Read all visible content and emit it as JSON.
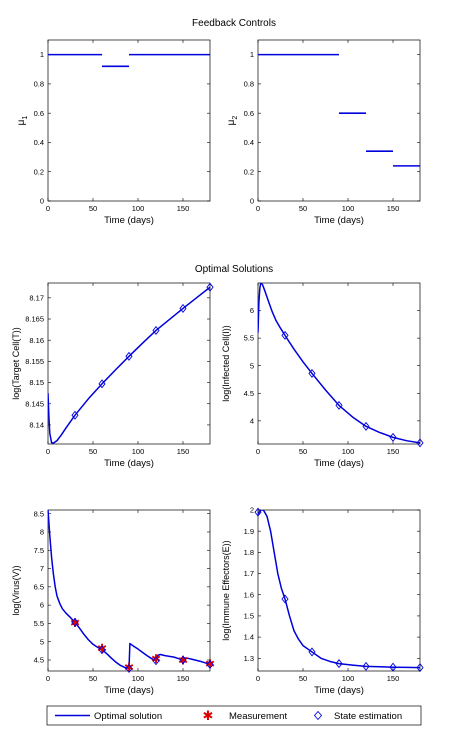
{
  "section_titles": {
    "controls": "Feedback Controls",
    "solutions": "Optimal Solutions"
  },
  "colors": {
    "line": "#0000dd",
    "marker_measure": "#dd0000",
    "axis": "#000000"
  },
  "legend": {
    "optimal": "Optimal solution",
    "measurement": "Measurement",
    "state": "State estimation"
  },
  "chart_data": [
    {
      "id": "mu1",
      "type": "line",
      "ylabel": "μ",
      "ylabel_sub": "1",
      "xlabel": "Time (days)",
      "xlim": [
        0,
        180
      ],
      "ylim": [
        0,
        1.1
      ],
      "xticks": [
        0,
        50,
        100,
        150
      ],
      "yticks": [
        0,
        0.2,
        0.4,
        0.6,
        0.8,
        1
      ],
      "ytick_labels": [
        "0",
        "0.2",
        "0.4",
        "0.6",
        "0.8",
        "1"
      ],
      "segments": [
        {
          "x": [
            0,
            60
          ],
          "y": [
            1,
            1
          ]
        },
        {
          "x": [
            60,
            90
          ],
          "y": [
            0.92,
            0.92
          ]
        },
        {
          "x": [
            90,
            180
          ],
          "y": [
            1,
            1
          ]
        }
      ]
    },
    {
      "id": "mu2",
      "type": "line",
      "ylabel": "μ",
      "ylabel_sub": "2",
      "xlabel": "Time (days)",
      "xlim": [
        0,
        180
      ],
      "ylim": [
        0,
        1.1
      ],
      "xticks": [
        0,
        50,
        100,
        150
      ],
      "yticks": [
        0,
        0.2,
        0.4,
        0.6,
        0.8,
        1
      ],
      "ytick_labels": [
        "0",
        "0.2",
        "0.4",
        "0.6",
        "0.8",
        "1"
      ],
      "segments": [
        {
          "x": [
            0,
            90
          ],
          "y": [
            1,
            1
          ]
        },
        {
          "x": [
            90,
            120
          ],
          "y": [
            0.6,
            0.6
          ]
        },
        {
          "x": [
            120,
            150
          ],
          "y": [
            0.34,
            0.34
          ]
        },
        {
          "x": [
            150,
            180
          ],
          "y": [
            0.24,
            0.24
          ]
        }
      ]
    },
    {
      "id": "target",
      "type": "line",
      "ylabel": "log(Target Cell(T))",
      "xlabel": "Time (days)",
      "xlim": [
        0,
        180
      ],
      "ylim": [
        8.1355,
        8.1735
      ],
      "xticks": [
        0,
        50,
        100,
        150
      ],
      "yticks": [
        8.14,
        8.145,
        8.15,
        8.155,
        8.16,
        8.165,
        8.17
      ],
      "ytick_labels": [
        "8.14",
        "8.145",
        "8.15",
        "8.155",
        "8.16",
        "8.165",
        "8.17"
      ],
      "x": [
        0,
        1,
        2,
        4,
        6,
        10,
        15,
        20,
        30,
        45,
        60,
        75,
        90,
        105,
        120,
        135,
        150,
        165,
        180
      ],
      "y": [
        8.1475,
        8.142,
        8.138,
        8.1358,
        8.1357,
        8.1363,
        8.1377,
        8.1393,
        8.1423,
        8.1462,
        8.1497,
        8.153,
        8.1562,
        8.1593,
        8.1623,
        8.1649,
        8.1675,
        8.17,
        8.1725
      ],
      "state_x": [
        30,
        60,
        90,
        120,
        150,
        180
      ],
      "state_y": [
        8.1423,
        8.1497,
        8.1562,
        8.1623,
        8.1675,
        8.1725
      ]
    },
    {
      "id": "infected",
      "type": "line",
      "ylabel": "log(Infected Cell(I))",
      "xlabel": "Time (days)",
      "xlim": [
        0,
        180
      ],
      "ylim": [
        3.58,
        6.5
      ],
      "xticks": [
        0,
        50,
        100,
        150
      ],
      "yticks": [
        4,
        4.5,
        5,
        5.5,
        6
      ],
      "ytick_labels": [
        "4",
        "4.5",
        "5",
        "5.5",
        "6"
      ],
      "x": [
        0,
        1,
        2,
        3,
        5,
        8,
        12,
        16,
        20,
        25,
        30,
        40,
        50,
        60,
        75,
        90,
        105,
        120,
        135,
        150,
        165,
        180
      ],
      "y": [
        5.6,
        6.15,
        6.4,
        6.5,
        6.47,
        6.34,
        6.15,
        5.97,
        5.82,
        5.68,
        5.55,
        5.3,
        5.07,
        4.86,
        4.56,
        4.28,
        4.07,
        3.9,
        3.79,
        3.7,
        3.64,
        3.6
      ],
      "state_x": [
        30,
        60,
        90,
        120,
        150,
        180
      ],
      "state_y": [
        5.55,
        4.86,
        4.28,
        3.9,
        3.7,
        3.6
      ]
    },
    {
      "id": "virus",
      "type": "line",
      "ylabel": "log(Virus(V))",
      "xlabel": "Time (days)",
      "xlim": [
        0,
        180
      ],
      "ylim": [
        4.2,
        8.6
      ],
      "xticks": [
        0,
        50,
        100,
        150
      ],
      "yticks": [
        4.5,
        5,
        5.5,
        6,
        6.5,
        7,
        7.5,
        8,
        8.5
      ],
      "ytick_labels": [
        "4.5",
        "5",
        "5.5",
        "6",
        "6.5",
        "7",
        "7.5",
        "8",
        "8.5"
      ],
      "x": [
        0,
        2,
        4,
        6,
        8,
        10,
        13,
        16,
        20,
        25,
        30,
        35,
        40,
        45,
        50,
        55,
        60,
        65,
        70,
        75,
        80,
        85,
        90,
        91,
        95,
        100,
        105,
        110,
        115,
        120,
        122,
        125,
        130,
        135,
        140,
        145,
        150,
        152,
        155,
        160,
        165,
        170,
        175,
        180
      ],
      "y": [
        8.6,
        7.9,
        7.3,
        6.85,
        6.5,
        6.25,
        6.05,
        5.9,
        5.78,
        5.66,
        5.53,
        5.37,
        5.2,
        5.05,
        4.93,
        4.85,
        4.78,
        4.68,
        4.56,
        4.45,
        4.36,
        4.3,
        4.27,
        4.95,
        4.88,
        4.8,
        4.71,
        4.62,
        4.54,
        4.48,
        4.63,
        4.65,
        4.62,
        4.6,
        4.58,
        4.54,
        4.5,
        4.56,
        4.55,
        4.52,
        4.49,
        4.46,
        4.42,
        4.38
      ],
      "state_x": [
        30,
        60,
        90,
        120,
        150,
        180
      ],
      "state_y": [
        5.53,
        4.78,
        4.27,
        4.48,
        4.5,
        4.38
      ],
      "measure_x": [
        30,
        60,
        90,
        120,
        150,
        180
      ],
      "measure_y": [
        5.52,
        4.82,
        4.3,
        4.53,
        4.5,
        4.4
      ]
    },
    {
      "id": "immune",
      "type": "line",
      "ylabel": "log(Immune Effectors(E))",
      "xlabel": "Time (days)",
      "xlim": [
        0,
        180
      ],
      "ylim": [
        1.24,
        2.0
      ],
      "xticks": [
        0,
        50,
        100,
        150
      ],
      "yticks": [
        1.3,
        1.4,
        1.5,
        1.6,
        1.7,
        1.8,
        1.9,
        2
      ],
      "ytick_labels": [
        "1.3",
        "1.4",
        "1.5",
        "1.6",
        "1.7",
        "1.8",
        "1.9",
        "2"
      ],
      "x": [
        0,
        3,
        6,
        10,
        14,
        18,
        22,
        26,
        30,
        35,
        40,
        45,
        50,
        60,
        70,
        80,
        90,
        105,
        120,
        135,
        150,
        165,
        180
      ],
      "y": [
        1.98,
        2.0,
        2.0,
        1.97,
        1.9,
        1.8,
        1.7,
        1.63,
        1.58,
        1.5,
        1.43,
        1.39,
        1.36,
        1.33,
        1.3,
        1.285,
        1.275,
        1.268,
        1.262,
        1.26,
        1.258,
        1.257,
        1.256
      ],
      "state_x": [
        0,
        30,
        60,
        90,
        120,
        150,
        180
      ],
      "state_y": [
        1.99,
        1.58,
        1.33,
        1.275,
        1.262,
        1.258,
        1.256
      ]
    }
  ]
}
